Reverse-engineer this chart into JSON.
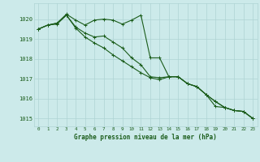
{
  "background_color": "#cceaea",
  "grid_color": "#aed4d4",
  "line_color": "#1a5c1a",
  "title": "Graphe pression niveau de la mer (hPa)",
  "xlim": [
    -0.5,
    23.5
  ],
  "ylim": [
    1014.6,
    1020.8
  ],
  "yticks": [
    1015,
    1016,
    1017,
    1018,
    1019,
    1020
  ],
  "xtick_labels": [
    "0",
    "1",
    "2",
    "3",
    "4",
    "5",
    "6",
    "7",
    "8",
    "9",
    "10",
    "11",
    "12",
    "13",
    "14",
    "15",
    "16",
    "17",
    "18",
    "19",
    "20",
    "21",
    "22",
    "23"
  ],
  "xtick_positions": [
    0,
    1,
    2,
    3,
    4,
    5,
    6,
    7,
    8,
    9,
    10,
    11,
    12,
    13,
    14,
    15,
    16,
    17,
    18,
    19,
    20,
    21,
    22,
    23
  ],
  "series": [
    {
      "x": [
        0,
        1,
        2,
        3,
        4,
        5,
        6,
        7,
        8,
        9,
        10,
        11,
        12,
        13,
        14,
        15,
        16,
        17,
        18,
        19,
        20,
        21,
        22,
        23
      ],
      "y": [
        1019.5,
        1019.7,
        1019.8,
        1020.25,
        1019.95,
        1019.7,
        1019.95,
        1020.0,
        1019.95,
        1019.75,
        1019.95,
        1020.2,
        1018.05,
        1018.05,
        1017.1,
        1017.1,
        1016.75,
        1016.6,
        1016.2,
        1015.6,
        1015.55,
        1015.4,
        1015.35,
        1015.0
      ]
    },
    {
      "x": [
        0,
        1,
        2,
        3,
        4,
        5,
        6,
        7,
        8,
        9,
        10,
        11,
        12,
        13,
        14,
        15,
        16,
        17,
        18,
        19,
        20,
        21,
        22,
        23
      ],
      "y": [
        1019.5,
        1019.7,
        1019.8,
        1020.2,
        1019.6,
        1019.3,
        1019.1,
        1019.15,
        1018.85,
        1018.55,
        1018.05,
        1017.7,
        1017.1,
        1017.05,
        1017.1,
        1017.1,
        1016.75,
        1016.6,
        1016.2,
        1015.85,
        1015.55,
        1015.4,
        1015.35,
        1015.0
      ]
    },
    {
      "x": [
        0,
        1,
        2,
        3,
        4,
        5,
        6,
        7,
        8,
        9,
        10,
        11,
        12,
        13,
        14,
        15,
        16,
        17,
        18,
        19,
        20,
        21,
        22,
        23
      ],
      "y": [
        1019.5,
        1019.7,
        1019.75,
        1020.2,
        1019.55,
        1019.1,
        1018.8,
        1018.55,
        1018.2,
        1017.9,
        1017.6,
        1017.3,
        1017.05,
        1016.95,
        1017.1,
        1017.1,
        1016.75,
        1016.6,
        1016.2,
        1015.85,
        1015.55,
        1015.4,
        1015.35,
        1015.0
      ]
    }
  ]
}
